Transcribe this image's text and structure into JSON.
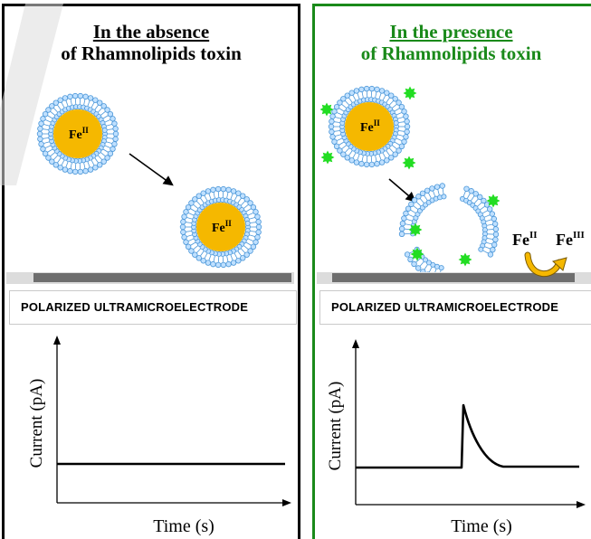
{
  "left": {
    "title_line1": "In the absence",
    "title_line2": "of Rhamnolipids toxin",
    "electrode_label": "POLARIZED ULTRAMICROELECTRODE",
    "vesicle_label": "Fe",
    "vesicle_label_sup": "II",
    "plot": {
      "ylabel": "Current (pA)",
      "xlabel": "Time (s)"
    }
  },
  "right": {
    "title_line1": "In the presence",
    "title_line2": "of Rhamnolipids toxin",
    "electrode_label": "POLARIZED ULTRAMICROELECTRODE",
    "vesicle_label": "Fe",
    "vesicle_label_sup": "II",
    "redox_from": "Fe",
    "redox_from_sup": "II",
    "redox_to": "Fe",
    "redox_to_sup": "III",
    "plot": {
      "ylabel": "Current (pA)",
      "xlabel": "Time (s)"
    }
  },
  "colors": {
    "left_border": "#000000",
    "right_border": "#1a8a1a",
    "iron_core": "#f5b800",
    "lipid_head": "#bfe0ff",
    "lipid_outline": "#4a96d8",
    "toxin": "#22dd22",
    "electrode": "#6e6e6e"
  }
}
